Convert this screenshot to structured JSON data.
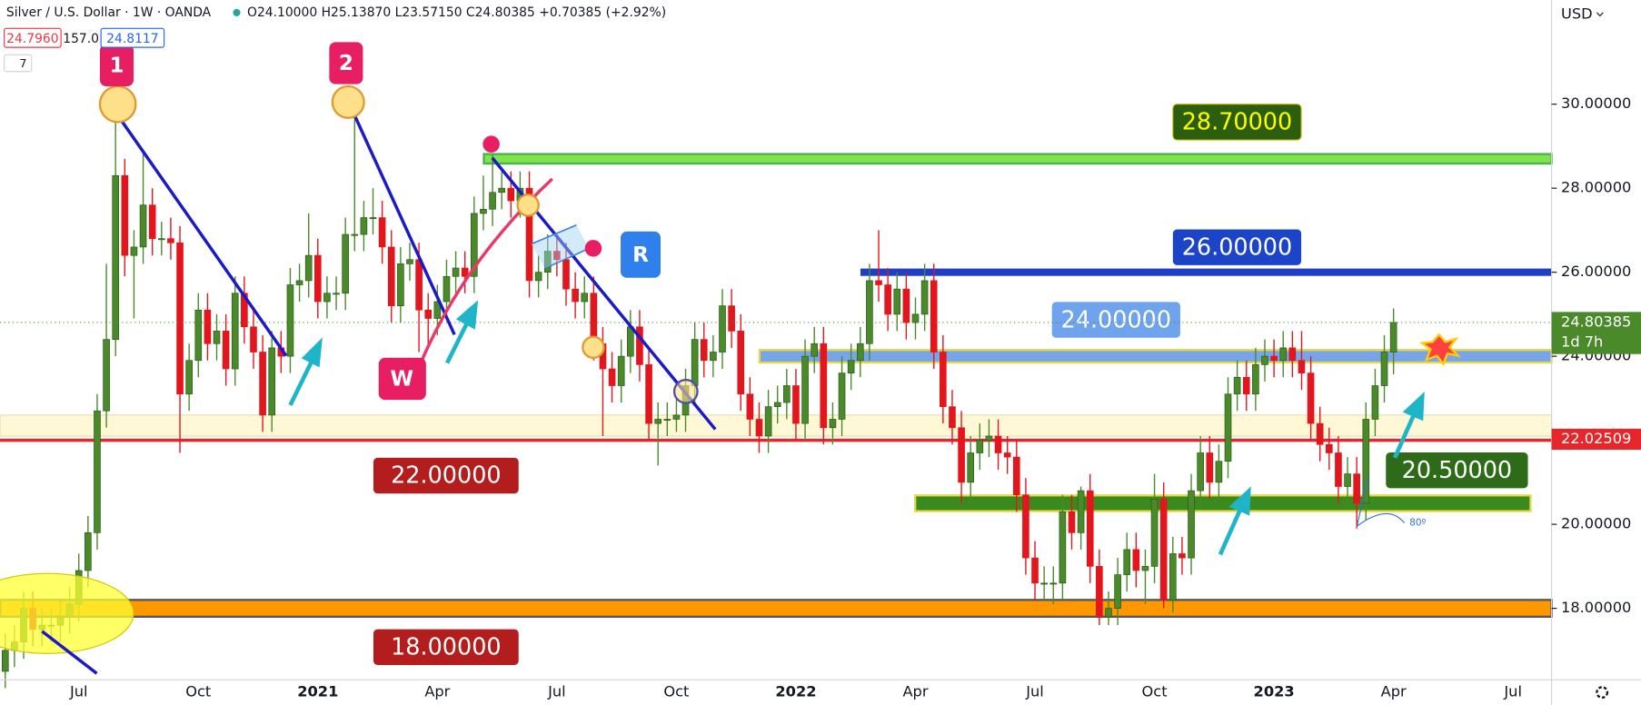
{
  "header": {
    "symbol": "Silver / U.S. Dollar · 1W · OANDA",
    "ohlc": "O24.10000  H25.13870  L23.57150  C24.80385  +0.70385 (+2.92%)",
    "sell": "24.7960",
    "spread": "157.0",
    "buy": "24.8117",
    "indicators": "7",
    "currency": "USD"
  },
  "annotations": {
    "point1": "1",
    "point2": "2",
    "w": "W",
    "r": "R",
    "angle": "80º"
  },
  "chart_data": {
    "type": "candlestick",
    "categories": [
      null,
      null,
      null,
      null,
      null,
      null,
      null,
      null,
      "Jul",
      null,
      null,
      null,
      null,
      null,
      null,
      null,
      null,
      null,
      null,
      null,
      null,
      "Oct",
      null,
      null,
      null,
      null,
      null,
      null,
      null,
      null,
      null,
      null,
      null,
      null,
      "2021",
      null,
      null,
      null,
      null,
      null,
      null,
      null,
      null,
      null,
      null,
      null,
      null,
      "Apr",
      null,
      null,
      null,
      null,
      null,
      null,
      null,
      null,
      null,
      null,
      null,
      null,
      "Jul",
      null,
      null,
      null,
      null,
      null,
      null,
      null,
      null,
      null,
      null,
      null,
      null,
      "Oct",
      null,
      null,
      null,
      null,
      null,
      null,
      null,
      null,
      null,
      null,
      null,
      null,
      "2022",
      null,
      null,
      null,
      null,
      null,
      null,
      null,
      null,
      null,
      null,
      null,
      null,
      "Apr",
      null,
      null,
      null,
      null,
      null,
      null,
      null,
      null,
      null,
      null,
      null,
      null,
      "Jul",
      null,
      null,
      null,
      null,
      null,
      null,
      null,
      null,
      null,
      null,
      null,
      null,
      "Oct",
      null,
      null,
      null,
      null,
      null,
      null,
      null,
      null,
      null,
      null,
      null,
      null,
      "2023",
      null,
      null,
      null,
      null,
      null,
      null,
      null,
      null,
      null,
      null,
      null,
      null,
      "Apr",
      null,
      null,
      null,
      null,
      null,
      null,
      null,
      null,
      null,
      null,
      null,
      null,
      "Jul",
      null,
      null,
      null,
      null,
      null
    ],
    "open": [
      16.5,
      17.0,
      17.2,
      18.0,
      17.5,
      17.6,
      17.6,
      17.8,
      18.1,
      18.9,
      19.8,
      22.7,
      24.4,
      28.3,
      26.4,
      26.6,
      27.6,
      26.8,
      26.8,
      26.7,
      23.1,
      23.9,
      25.1,
      24.3,
      24.6,
      23.7,
      25.5,
      24.7,
      24.1,
      22.6,
      24.2,
      24.0,
      25.7,
      25.8,
      26.4,
      25.3,
      25.5,
      25.5,
      26.9,
      26.9,
      27.3,
      27.3,
      26.6,
      25.2,
      26.2,
      26.3,
      25.1,
      24.9,
      25.3,
      25.9,
      26.1,
      25.9,
      27.4,
      27.5,
      27.9,
      28.0,
      27.7,
      28.0,
      25.8,
      26.0,
      26.5,
      26.3,
      25.6,
      25.3,
      25.5,
      24.3,
      23.7,
      23.3,
      24.0,
      24.7,
      23.8,
      22.4,
      22.5,
      22.5,
      22.6,
      23.3,
      24.4,
      23.9,
      24.1,
      25.2,
      24.6,
      23.1,
      22.5,
      22.1,
      22.8,
      22.9,
      23.3,
      22.4,
      24.0,
      24.3,
      22.3,
      22.5,
      23.6,
      23.9,
      24.3,
      25.8,
      25.7,
      25.0,
      25.6,
      24.8,
      25.0,
      25.8,
      24.1,
      22.8,
      22.3,
      21.0,
      21.7,
      22.0,
      22.1,
      21.7,
      21.6,
      20.7,
      19.2,
      18.6,
      18.6,
      18.6,
      20.3,
      19.8,
      20.8,
      19.0,
      17.8,
      18.0,
      18.8,
      19.4,
      18.9,
      19.0,
      20.6,
      18.2,
      19.3,
      19.2,
      20.8,
      21.7,
      21.0,
      21.5,
      23.1,
      23.5,
      23.1,
      23.8,
      24.0,
      23.9,
      24.2,
      23.9,
      23.6,
      22.4,
      21.9,
      21.7,
      20.9,
      21.2,
      20.5,
      22.5,
      23.3,
      24.1,
      null,
      null,
      null,
      null,
      null,
      null,
      null,
      null,
      null,
      null,
      null,
      null,
      null,
      null,
      null,
      null,
      null,
      null
    ],
    "high": [
      17.4,
      17.6,
      18.4,
      18.4,
      18.0,
      18.0,
      18.2,
      18.5,
      19.3,
      20.2,
      23.1,
      26.2,
      29.9,
      28.7,
      27.0,
      28.9,
      28.0,
      27.2,
      27.3,
      27.1,
      24.3,
      25.5,
      25.5,
      25.0,
      25.0,
      25.9,
      25.9,
      25.1,
      24.5,
      24.6,
      24.6,
      26.1,
      26.2,
      27.4,
      26.8,
      25.9,
      25.9,
      27.3,
      30.1,
      27.7,
      28.0,
      27.7,
      27.0,
      26.6,
      26.7,
      26.7,
      25.5,
      25.7,
      26.3,
      26.5,
      26.5,
      27.8,
      28.3,
      28.8,
      28.4,
      28.4,
      28.4,
      28.4,
      26.4,
      26.9,
      26.9,
      26.7,
      26.0,
      25.9,
      25.9,
      24.7,
      24.1,
      24.4,
      25.1,
      25.1,
      24.2,
      22.9,
      22.9,
      23.0,
      23.7,
      24.8,
      24.8,
      24.5,
      25.6,
      25.6,
      25.0,
      23.5,
      22.9,
      23.2,
      23.3,
      23.7,
      23.7,
      24.4,
      24.7,
      24.7,
      22.9,
      24.0,
      24.3,
      24.7,
      26.2,
      27.0,
      26.1,
      26.0,
      26.0,
      25.4,
      26.2,
      26.2,
      24.5,
      23.2,
      22.7,
      22.1,
      22.4,
      22.5,
      22.5,
      22.1,
      22.0,
      21.1,
      19.6,
      19.0,
      19.0,
      20.7,
      20.7,
      20.9,
      21.2,
      19.4,
      18.4,
      19.2,
      19.8,
      19.8,
      19.4,
      21.2,
      21.0,
      19.7,
      19.7,
      21.2,
      22.1,
      22.1,
      21.9,
      23.5,
      23.9,
      23.9,
      24.2,
      24.4,
      24.4,
      24.6,
      24.6,
      24.6,
      24.0,
      22.8,
      22.3,
      22.1,
      21.6,
      21.6,
      22.9,
      23.7,
      24.5,
      25.1387,
      null,
      null,
      null,
      null,
      null,
      null,
      null,
      null,
      null,
      null,
      null,
      null,
      null,
      null,
      null,
      null,
      null,
      null
    ],
    "low": [
      16.1,
      16.6,
      16.8,
      17.1,
      17.1,
      17.2,
      17.2,
      17.4,
      17.7,
      18.5,
      19.4,
      22.3,
      24.0,
      25.9,
      24.9,
      26.2,
      26.4,
      26.4,
      26.3,
      21.7,
      22.7,
      23.5,
      23.9,
      23.9,
      23.3,
      23.3,
      24.3,
      23.7,
      22.2,
      22.2,
      23.6,
      23.6,
      25.3,
      25.4,
      24.9,
      24.9,
      25.1,
      25.1,
      26.5,
      26.5,
      26.9,
      26.2,
      24.8,
      24.8,
      25.8,
      24.1,
      24.2,
      24.5,
      24.9,
      25.5,
      25.5,
      25.5,
      27.0,
      27.1,
      27.5,
      27.3,
      27.3,
      25.4,
      25.4,
      25.6,
      25.9,
      25.2,
      24.9,
      24.9,
      23.9,
      22.1,
      22.9,
      22.9,
      23.6,
      23.4,
      22.0,
      21.4,
      22.1,
      22.2,
      22.2,
      22.9,
      23.5,
      23.5,
      23.7,
      24.2,
      22.7,
      22.1,
      21.7,
      21.7,
      22.4,
      22.5,
      22.0,
      22.0,
      23.6,
      21.9,
      21.9,
      22.1,
      23.2,
      23.5,
      23.9,
      25.3,
      24.6,
      24.6,
      24.4,
      24.4,
      24.6,
      23.7,
      22.4,
      21.9,
      20.5,
      20.6,
      21.3,
      21.6,
      21.3,
      21.2,
      20.3,
      18.8,
      18.2,
      18.2,
      18.1,
      18.2,
      19.4,
      19.4,
      18.6,
      17.6,
      17.6,
      17.6,
      18.4,
      18.5,
      18.1,
      18.6,
      18.0,
      17.9,
      18.8,
      18.8,
      20.4,
      20.6,
      20.6,
      21.1,
      22.7,
      22.7,
      22.7,
      23.4,
      23.5,
      23.5,
      23.5,
      23.2,
      22.0,
      21.5,
      21.3,
      20.5,
      20.5,
      19.9,
      20.1,
      22.1,
      22.9,
      23.5715,
      null,
      null,
      null,
      null,
      null,
      null,
      null,
      null,
      null,
      null,
      null,
      null,
      null,
      null,
      null,
      null,
      null,
      null
    ],
    "close": [
      17.0,
      17.2,
      18.0,
      17.5,
      17.6,
      17.6,
      17.8,
      18.1,
      18.9,
      19.8,
      22.7,
      24.4,
      28.3,
      26.4,
      26.6,
      27.6,
      26.8,
      26.8,
      26.7,
      23.1,
      23.9,
      25.1,
      24.3,
      24.6,
      23.7,
      25.5,
      24.7,
      24.1,
      22.6,
      24.2,
      24.0,
      25.7,
      25.8,
      26.4,
      25.3,
      25.5,
      25.5,
      26.9,
      26.9,
      27.3,
      27.3,
      26.6,
      25.2,
      26.2,
      26.3,
      25.1,
      24.9,
      25.3,
      25.9,
      26.1,
      25.9,
      27.4,
      27.5,
      27.9,
      28.0,
      27.7,
      28.0,
      25.8,
      26.0,
      26.5,
      26.3,
      25.6,
      25.3,
      25.5,
      24.3,
      23.7,
      23.3,
      24.0,
      24.7,
      23.8,
      22.4,
      22.5,
      22.5,
      22.6,
      23.3,
      24.4,
      23.9,
      24.1,
      25.2,
      24.6,
      23.1,
      22.5,
      22.1,
      22.8,
      22.9,
      23.3,
      22.4,
      24.0,
      24.3,
      22.3,
      22.5,
      23.6,
      23.9,
      24.3,
      25.8,
      25.7,
      25.0,
      25.6,
      24.8,
      25.0,
      25.8,
      24.1,
      22.8,
      22.3,
      21.0,
      21.7,
      22.0,
      22.1,
      21.7,
      21.6,
      20.7,
      19.2,
      18.6,
      18.6,
      18.6,
      20.3,
      19.8,
      20.8,
      19.0,
      17.8,
      18.0,
      18.8,
      19.4,
      18.9,
      19.0,
      20.6,
      18.2,
      19.3,
      19.2,
      20.8,
      21.7,
      21.0,
      21.5,
      23.1,
      23.5,
      23.1,
      23.8,
      24.0,
      23.9,
      24.2,
      23.9,
      23.6,
      22.4,
      21.9,
      21.7,
      20.9,
      21.2,
      20.5,
      22.5,
      23.3,
      24.1,
      24.80385,
      null,
      null,
      null,
      null,
      null,
      null,
      null,
      null,
      null,
      null,
      null,
      null,
      null,
      null,
      null,
      null,
      null,
      null
    ],
    "up_color": "#4a8a2b",
    "down_color": "#e3161e",
    "ylim": [
      16.3,
      32.48
    ],
    "yticks": [
      {
        "value": 18,
        "label": "18.00000"
      },
      {
        "value": 20,
        "label": "20.00000"
      },
      {
        "value": 22,
        "label": "22.00000"
      },
      {
        "value": 24,
        "label": "24.00000"
      },
      {
        "value": 26,
        "label": "26.00000"
      },
      {
        "value": 28,
        "label": "28.00000"
      },
      {
        "value": 30,
        "label": "30.00000"
      }
    ],
    "zones": [
      {
        "low": 22.1,
        "high": 22.6,
        "color": "#fff8d6"
      }
    ],
    "levels": [
      {
        "value": 28.7,
        "label": "28.70000",
        "color": "#7fe34a",
        "label_bg": "#2c5e10",
        "label_color": "#ffff00"
      },
      {
        "value": 26,
        "label": "26.00000",
        "color": "#1f3fc9",
        "label_bg": "#1c44c8",
        "label_color": "#ffffff"
      },
      {
        "value": 24,
        "label": "24.00000",
        "color": "#78a5ea",
        "label_bg": "#6fa3ee",
        "label_color": "#ffffff"
      },
      {
        "value": 22,
        "label": "22.00000",
        "color": "#e5262b",
        "label_bg": "#b31d1d",
        "label_color": "#ffffff"
      },
      {
        "value": 20.5,
        "label": "20.50000",
        "color": "#3b8a1f",
        "label_bg": "#2e6b19",
        "label_color": "#ffffff"
      },
      {
        "value": 18,
        "label": "18.00000",
        "color": "#ff9800",
        "label_bg": "#b31d1d",
        "label_color": "#ffffff"
      }
    ],
    "price_tags": [
      {
        "value": 24.80385,
        "label": "24.80385",
        "sub": "1d 7h",
        "color": "#4a8a2b"
      },
      {
        "value": 22.02509,
        "label": "22.02509",
        "color": "#e5262b"
      }
    ]
  }
}
